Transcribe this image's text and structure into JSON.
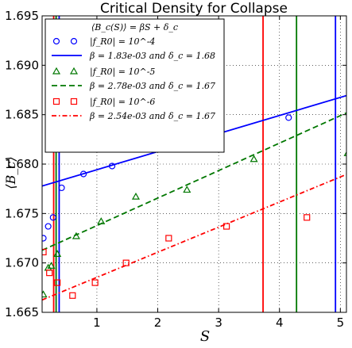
{
  "chart_data": {
    "type": "scatter",
    "title": "Critical Density for Collapse",
    "xlabel": "S",
    "ylabel": "⟨B_c⟩",
    "xlim": [
      0.1,
      5.1
    ],
    "ylim": [
      1.665,
      1.695
    ],
    "xticks": [
      1,
      2,
      3,
      4,
      5
    ],
    "xtick_labels": [
      "1",
      "2",
      "3",
      "4",
      "5"
    ],
    "yticks": [
      1.665,
      1.67,
      1.675,
      1.68,
      1.685,
      1.69,
      1.695
    ],
    "ytick_labels": [
      "1.665",
      "1.670",
      "1.675",
      "1.680",
      "1.685",
      "1.690",
      "1.695"
    ],
    "grid": true,
    "legend_position": "top-left",
    "legend_title": "⟨B_c(S)⟩ = βS + δ_c",
    "series": [
      {
        "name": "|f_R0| = 10^-4",
        "color": "#0000ff",
        "marker": "circle",
        "x": [
          0.12,
          0.2,
          0.28,
          0.42,
          0.78,
          1.25,
          1.93,
          2.9,
          4.15
        ],
        "y": [
          1.6725,
          1.6737,
          1.6746,
          1.6776,
          1.679,
          1.6798,
          1.6823,
          1.6826,
          1.6847
        ],
        "fit_label": "β = 1.83e-03 and δ_c = 1.68",
        "fit_slope": 0.00183,
        "fit_intercept": 1.6776,
        "fit_style": "solid",
        "vline_x": 4.92,
        "vline2_x": 0.38
      },
      {
        "name": "|f_R0| = 10^-5",
        "color": "#007700",
        "marker": "triangle",
        "x": [
          0.12,
          0.2,
          0.25,
          0.35,
          0.66,
          1.07,
          1.64,
          2.48,
          3.58,
          5.12
        ],
        "y": [
          1.6668,
          1.6695,
          1.6697,
          1.6709,
          1.6727,
          1.6742,
          1.6767,
          1.6774,
          1.6805,
          1.6811
        ],
        "fit_label": "β = 2.78e-03 and δ_c = 1.67",
        "fit_slope": 0.00278,
        "fit_intercept": 1.671,
        "fit_style": "dashed",
        "vline_x": 4.28,
        "vline2_x": 0.33
      },
      {
        "name": "|f_R0| = 10^-6",
        "color": "#ff0000",
        "marker": "square",
        "x": [
          0.12,
          0.22,
          0.35,
          0.6,
          0.97,
          1.48,
          2.18,
          3.13,
          4.45
        ],
        "y": [
          1.6711,
          1.669,
          1.668,
          1.6667,
          1.668,
          1.67,
          1.6725,
          1.6737,
          1.6746
        ],
        "fit_label": "β = 2.54e-03 and δ_c = 1.67",
        "fit_slope": 0.00254,
        "fit_intercept": 1.666,
        "fit_style": "dashdot",
        "vline_x": 3.73,
        "vline2_x": 0.29
      }
    ]
  }
}
